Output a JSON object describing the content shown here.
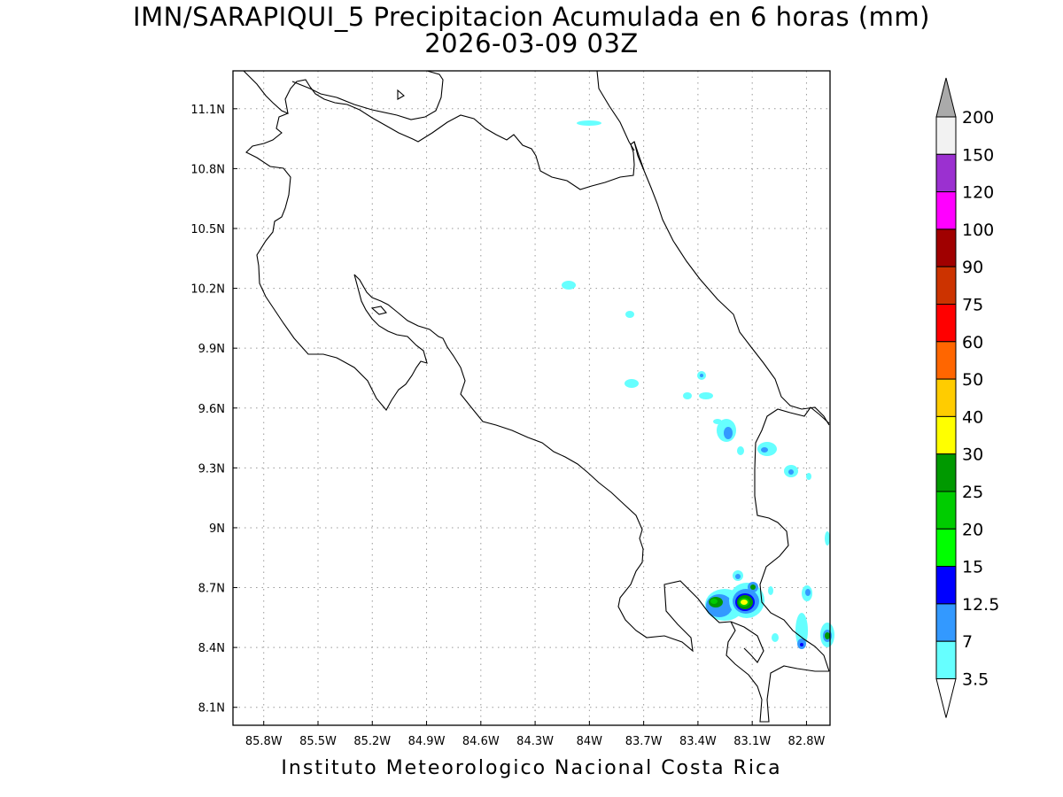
{
  "title": {
    "line1": "IMN/SARAPIQUI_5 Precipitacion Acumulada en 6 horas (mm)",
    "line2": "2026-03-09 03Z"
  },
  "footer": "Instituto Meteorologico Nacional Costa Rica",
  "axes": {
    "x_ticks": [
      "85.8W",
      "85.5W",
      "85.2W",
      "84.9W",
      "84.6W",
      "84.3W",
      "84W",
      "83.7W",
      "83.4W",
      "83.1W",
      "82.8W"
    ],
    "x_values": [
      -85.8,
      -85.5,
      -85.2,
      -84.9,
      -84.6,
      -84.3,
      -84.0,
      -83.7,
      -83.4,
      -83.1,
      -82.8
    ],
    "y_ticks": [
      "11.1N",
      "10.8N",
      "10.5N",
      "10.2N",
      "9.9N",
      "9.6N",
      "9.3N",
      "9N",
      "8.7N",
      "8.4N",
      "8.1N"
    ],
    "y_values": [
      11.1,
      10.8,
      10.5,
      10.2,
      9.9,
      9.6,
      9.3,
      9.0,
      8.7,
      8.4,
      8.1
    ],
    "lon_range": [
      -85.97,
      -82.67
    ],
    "lat_range": [
      8.01,
      11.29
    ],
    "grid": "dotted"
  },
  "colorbar": {
    "levels": [
      "200",
      "150",
      "120",
      "100",
      "90",
      "75",
      "60",
      "50",
      "40",
      "30",
      "25",
      "20",
      "15",
      "12.5",
      "7",
      "3.5"
    ],
    "colors": [
      "#f2f2f2",
      "#9b30d0",
      "#ff00ff",
      "#a00000",
      "#cc3300",
      "#ff0000",
      "#ff6600",
      "#ffcc00",
      "#ffff00",
      "#009900",
      "#00cc00",
      "#00ff00",
      "#0000ff",
      "#3399ff",
      "#66ffff"
    ],
    "top_arrow_color": "#aaaaaa",
    "bottom_arrow_color": "#ffffff"
  },
  "colors": {
    "c35": "#66ffff",
    "c7": "#3399ff",
    "c125": "#0000ff",
    "c15": "#00ff00",
    "c20": "#00cc00",
    "c25": "#009900",
    "c30": "#ffff00"
  }
}
